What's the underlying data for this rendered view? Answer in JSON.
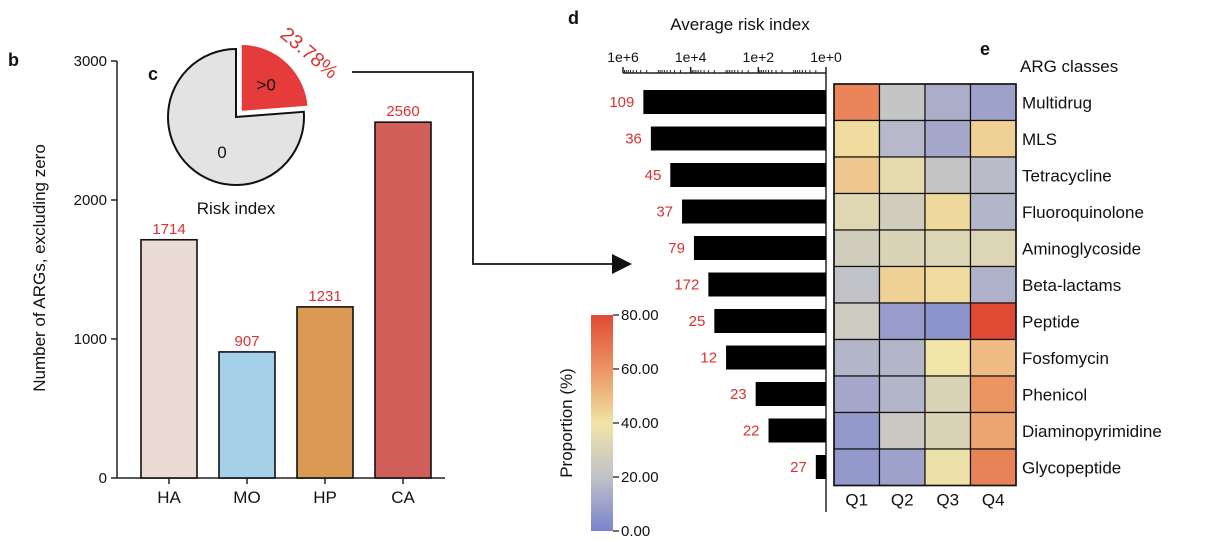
{
  "panels": {
    "b": "b",
    "c": "c",
    "d": "d",
    "e": "e"
  },
  "chart_data": [
    {
      "panel": "b",
      "type": "bar",
      "ylabel": "Number of ARGs, excluding zero",
      "xlabel": "",
      "ylim": [
        0,
        3000
      ],
      "yticks": [
        "0",
        "1000",
        "2000",
        "3000"
      ],
      "categories": [
        "HA",
        "MO",
        "HP",
        "CA"
      ],
      "values": [
        1714,
        907,
        1231,
        2560
      ],
      "value_labels": [
        "1714",
        "907",
        "1231",
        "2560"
      ],
      "colors": [
        "#eadbd4",
        "#a6d0ea",
        "#db9a54",
        "#d05e59"
      ]
    },
    {
      "panel": "c",
      "type": "pie",
      "title": "Risk index",
      "slices": [
        {
          "label": "0",
          "value": 76.22,
          "color": "#e3e3e3"
        },
        {
          "label": ">0",
          "value": 23.78,
          "color": "#e63b3b"
        }
      ],
      "annotation": "23.78%"
    },
    {
      "panel": "d",
      "type": "bar",
      "orientation": "horizontal",
      "title": "Average risk index",
      "scale": "log",
      "xlim": [
        1000000,
        1
      ],
      "xticks": [
        "1e+6",
        "1e+4",
        "1e+2",
        "1e+0"
      ],
      "categories": [
        "Multidrug",
        "MLS",
        "Tetracycline",
        "Fluoroquinolone",
        "Aminoglycoside",
        "Beta-lactams",
        "Peptide",
        "Fosfomycin",
        "Phenicol",
        "Diaminopyrimidine",
        "Glycopeptide"
      ],
      "values": [
        250000,
        150000,
        40000,
        18000,
        8000,
        3000,
        2000,
        900,
        120,
        50,
        2
      ],
      "count_labels": [
        "109",
        "36",
        "45",
        "37",
        "79",
        "172",
        "25",
        "12",
        "23",
        "22",
        "27"
      ],
      "bar_color": "#000000"
    },
    {
      "panel": "e",
      "type": "heatmap",
      "title": "ARG classes",
      "columns": [
        "Q1",
        "Q2",
        "Q3",
        "Q4"
      ],
      "rows": [
        "Multidrug",
        "MLS",
        "Tetracycline",
        "Fluoroquinolone",
        "Aminoglycoside",
        "Beta-lactams",
        "Peptide",
        "Fosfomycin",
        "Phenicol",
        "Diaminopyrimidine",
        "Glycopeptide"
      ],
      "values": [
        [
          64,
          22,
          14,
          10
        ],
        [
          42,
          17,
          12,
          45
        ],
        [
          47,
          35,
          22,
          18
        ],
        [
          33,
          27,
          43,
          16
        ],
        [
          27,
          30,
          32,
          32
        ],
        [
          20,
          45,
          42,
          15
        ],
        [
          25,
          8,
          5,
          80
        ],
        [
          16,
          16,
          40,
          50
        ],
        [
          12,
          16,
          30,
          60
        ],
        [
          7,
          24,
          30,
          56
        ],
        [
          7,
          10,
          38,
          65
        ]
      ],
      "colorbar": {
        "label": "Proportion (%)",
        "range": [
          0,
          80
        ],
        "ticks": [
          "80.00",
          "60.00",
          "40.00",
          "20.00",
          "0.00"
        ],
        "colors": [
          "#7b83cc",
          "#c1c1c8",
          "#f0e4a6",
          "#eb9462",
          "#e04a35"
        ]
      }
    }
  ]
}
